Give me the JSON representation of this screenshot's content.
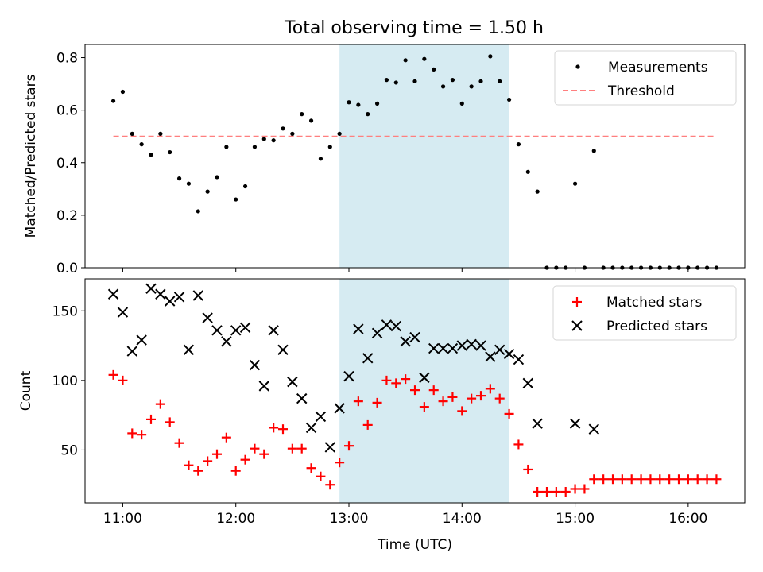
{
  "title": "Total observing time = 1.50 h",
  "colors": {
    "measurement": "#000000",
    "threshold": "#ff7f7f",
    "matched": "#ff0000",
    "predicted": "#000000",
    "span": "#add8e6"
  },
  "chart_data": [
    {
      "type": "scatter",
      "ylabel": "Matched/Predicted stars",
      "ylim": [
        0,
        0.85
      ],
      "yticks": [
        0.0,
        0.2,
        0.4,
        0.6,
        0.8
      ],
      "xlim": [
        "10:40",
        "16:30"
      ],
      "shaded_span": [
        "12:55",
        "14:25"
      ],
      "legend": [
        "Measurements",
        "Threshold"
      ],
      "legend_position": "top-right",
      "threshold": {
        "value": 0.5,
        "x_range": [
          "10:55",
          "16:15"
        ]
      },
      "series": [
        {
          "name": "Measurements",
          "x": [
            "10:55",
            "11:00",
            "11:05",
            "11:10",
            "11:15",
            "11:20",
            "11:25",
            "11:30",
            "11:35",
            "11:40",
            "11:45",
            "11:50",
            "11:55",
            "12:00",
            "12:05",
            "12:10",
            "12:15",
            "12:20",
            "12:25",
            "12:30",
            "12:35",
            "12:40",
            "12:45",
            "12:50",
            "12:55",
            "13:00",
            "13:05",
            "13:10",
            "13:15",
            "13:20",
            "13:25",
            "13:30",
            "13:35",
            "13:40",
            "13:45",
            "13:50",
            "13:55",
            "14:00",
            "14:05",
            "14:10",
            "14:15",
            "14:20",
            "14:25",
            "14:30",
            "14:35",
            "14:40",
            "14:45",
            "14:50",
            "14:55",
            "15:00",
            "15:05",
            "15:10",
            "15:15",
            "15:20",
            "15:25",
            "15:30",
            "15:35",
            "15:40",
            "15:45",
            "15:50",
            "15:55",
            "16:00",
            "16:05",
            "16:10",
            "16:15"
          ],
          "y": [
            0.635,
            0.67,
            0.51,
            0.47,
            0.43,
            0.51,
            0.44,
            0.34,
            0.32,
            0.215,
            0.29,
            0.345,
            0.46,
            0.26,
            0.31,
            0.46,
            0.49,
            0.485,
            0.53,
            0.51,
            0.585,
            0.56,
            0.415,
            0.46,
            0.51,
            0.63,
            0.62,
            0.585,
            0.625,
            0.715,
            0.705,
            0.79,
            0.71,
            0.795,
            0.755,
            0.69,
            0.715,
            0.625,
            0.69,
            0.71,
            0.805,
            0.71,
            0.64,
            0.47,
            0.365,
            0.29,
            0,
            0,
            0,
            0.32,
            0,
            0.445,
            0,
            0,
            0,
            0,
            0,
            0,
            0,
            0,
            0,
            0,
            0,
            0,
            0
          ]
        }
      ]
    },
    {
      "type": "scatter",
      "xlabel": "Time (UTC)",
      "ylabel": "Count",
      "ylim": [
        12,
        173
      ],
      "yticks": [
        50,
        100,
        150
      ],
      "xlim": [
        "10:40",
        "16:30"
      ],
      "xticks": [
        "11:00",
        "12:00",
        "13:00",
        "14:00",
        "15:00",
        "16:00"
      ],
      "shaded_span": [
        "12:55",
        "14:25"
      ],
      "legend": [
        "Matched stars",
        "Predicted stars"
      ],
      "legend_position": "top-right",
      "series": [
        {
          "name": "Matched stars",
          "x": [
            "10:55",
            "11:00",
            "11:05",
            "11:10",
            "11:15",
            "11:20",
            "11:25",
            "11:30",
            "11:35",
            "11:40",
            "11:45",
            "11:50",
            "11:55",
            "12:00",
            "12:05",
            "12:10",
            "12:15",
            "12:20",
            "12:25",
            "12:30",
            "12:35",
            "12:40",
            "12:45",
            "12:50",
            "12:55",
            "13:00",
            "13:05",
            "13:10",
            "13:15",
            "13:20",
            "13:25",
            "13:30",
            "13:35",
            "13:40",
            "13:45",
            "13:50",
            "13:55",
            "14:00",
            "14:05",
            "14:10",
            "14:15",
            "14:20",
            "14:25",
            "14:30",
            "14:35",
            "14:40",
            "14:45",
            "14:50",
            "14:55",
            "15:00",
            "15:05",
            "15:10",
            "15:15",
            "15:20",
            "15:25",
            "15:30",
            "15:35",
            "15:40",
            "15:45",
            "15:50",
            "15:55",
            "16:00",
            "16:05",
            "16:10",
            "16:15"
          ],
          "y": [
            104,
            100,
            62,
            61,
            72,
            83,
            70,
            55,
            39,
            35,
            42,
            47,
            59,
            35,
            43,
            51,
            47,
            66,
            65,
            51,
            51,
            37,
            31,
            25,
            41,
            53,
            85,
            68,
            84,
            100,
            98,
            101,
            93,
            81,
            93,
            85,
            88,
            78,
            87,
            89,
            94,
            87,
            76,
            54,
            36,
            20,
            20,
            20,
            20,
            22,
            22,
            29,
            29,
            29,
            29,
            29,
            29,
            29,
            29,
            29,
            29,
            29,
            29,
            29,
            29
          ]
        },
        {
          "name": "Predicted stars",
          "x": [
            "10:55",
            "11:00",
            "11:05",
            "11:10",
            "11:15",
            "11:20",
            "11:25",
            "11:30",
            "11:35",
            "11:40",
            "11:45",
            "11:50",
            "11:55",
            "12:00",
            "12:05",
            "12:10",
            "12:15",
            "12:20",
            "12:25",
            "12:30",
            "12:35",
            "12:40",
            "12:45",
            "12:50",
            "12:55",
            "13:00",
            "13:05",
            "13:10",
            "13:15",
            "13:20",
            "13:25",
            "13:30",
            "13:35",
            "13:40",
            "13:45",
            "13:50",
            "13:55",
            "14:00",
            "14:05",
            "14:10",
            "14:15",
            "14:20",
            "14:25",
            "14:30",
            "14:35",
            "14:40",
            "15:00",
            "15:10"
          ],
          "y": [
            162,
            149,
            121,
            129,
            166,
            162,
            157,
            160,
            122,
            161,
            145,
            136,
            128,
            136,
            138,
            111,
            96,
            136,
            122,
            99,
            87,
            66,
            74,
            52,
            80,
            103,
            137,
            116,
            134,
            140,
            139,
            128,
            131,
            102,
            123,
            123,
            123,
            125,
            126,
            125,
            117,
            122,
            119,
            115,
            98,
            69,
            69,
            65
          ]
        }
      ]
    }
  ]
}
